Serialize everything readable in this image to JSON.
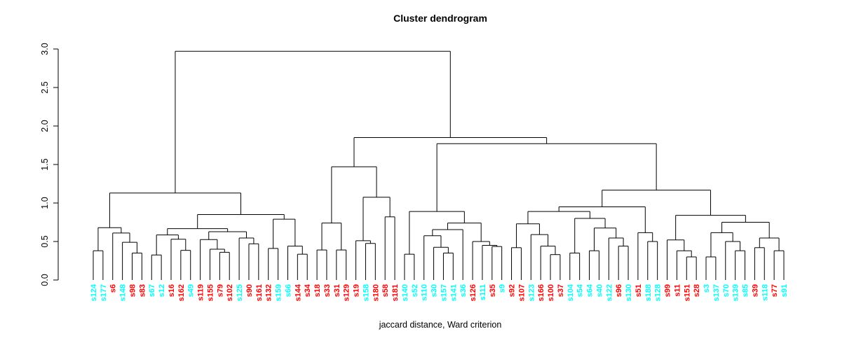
{
  "chart_data": {
    "type": "dendrogram",
    "title": "Cluster dendrogram",
    "xlabel": "jaccard distance, Ward criterion",
    "ylabel": "",
    "ylim": [
      0.0,
      3.0
    ],
    "y_ticks": [
      0.0,
      0.5,
      1.0,
      1.5,
      2.0,
      2.5,
      3.0
    ],
    "grid": false,
    "line_color": "#000000",
    "leaf_colors": {
      "red": "#FF0000",
      "cyan": "#00FFFF"
    },
    "leaves": [
      {
        "name": "s124",
        "color": "cyan"
      },
      {
        "name": "s177",
        "color": "cyan"
      },
      {
        "name": "s6",
        "color": "red"
      },
      {
        "name": "s148",
        "color": "cyan"
      },
      {
        "name": "s98",
        "color": "red"
      },
      {
        "name": "s83",
        "color": "red"
      },
      {
        "name": "s67",
        "color": "cyan"
      },
      {
        "name": "s12",
        "color": "cyan"
      },
      {
        "name": "s16",
        "color": "red"
      },
      {
        "name": "s162",
        "color": "red"
      },
      {
        "name": "s49",
        "color": "cyan"
      },
      {
        "name": "s119",
        "color": "red"
      },
      {
        "name": "s155",
        "color": "red"
      },
      {
        "name": "s79",
        "color": "red"
      },
      {
        "name": "s102",
        "color": "red"
      },
      {
        "name": "s125",
        "color": "cyan"
      },
      {
        "name": "s90",
        "color": "red"
      },
      {
        "name": "s161",
        "color": "red"
      },
      {
        "name": "s132",
        "color": "red"
      },
      {
        "name": "s159",
        "color": "cyan"
      },
      {
        "name": "s66",
        "color": "cyan"
      },
      {
        "name": "s144",
        "color": "red"
      },
      {
        "name": "s34",
        "color": "red"
      },
      {
        "name": "s18",
        "color": "red"
      },
      {
        "name": "s33",
        "color": "red"
      },
      {
        "name": "s31",
        "color": "red"
      },
      {
        "name": "s129",
        "color": "red"
      },
      {
        "name": "s19",
        "color": "red"
      },
      {
        "name": "s158",
        "color": "cyan"
      },
      {
        "name": "s180",
        "color": "red"
      },
      {
        "name": "s58",
        "color": "red"
      },
      {
        "name": "s181",
        "color": "red"
      },
      {
        "name": "s140",
        "color": "cyan"
      },
      {
        "name": "s52",
        "color": "cyan"
      },
      {
        "name": "s110",
        "color": "cyan"
      },
      {
        "name": "s30",
        "color": "cyan"
      },
      {
        "name": "s157",
        "color": "cyan"
      },
      {
        "name": "s141",
        "color": "cyan"
      },
      {
        "name": "s36",
        "color": "cyan"
      },
      {
        "name": "s126",
        "color": "red"
      },
      {
        "name": "s111",
        "color": "cyan"
      },
      {
        "name": "s35",
        "color": "red"
      },
      {
        "name": "s9",
        "color": "cyan"
      },
      {
        "name": "s92",
        "color": "red"
      },
      {
        "name": "s107",
        "color": "red"
      },
      {
        "name": "s123",
        "color": "cyan"
      },
      {
        "name": "s166",
        "color": "red"
      },
      {
        "name": "s100",
        "color": "red"
      },
      {
        "name": "s37",
        "color": "red"
      },
      {
        "name": "s104",
        "color": "cyan"
      },
      {
        "name": "s54",
        "color": "cyan"
      },
      {
        "name": "s64",
        "color": "cyan"
      },
      {
        "name": "s40",
        "color": "cyan"
      },
      {
        "name": "s122",
        "color": "cyan"
      },
      {
        "name": "s96",
        "color": "red"
      },
      {
        "name": "s130",
        "color": "cyan"
      },
      {
        "name": "s51",
        "color": "red"
      },
      {
        "name": "s188",
        "color": "cyan"
      },
      {
        "name": "s128",
        "color": "cyan"
      },
      {
        "name": "s99",
        "color": "red"
      },
      {
        "name": "s11",
        "color": "red"
      },
      {
        "name": "s151",
        "color": "red"
      },
      {
        "name": "s28",
        "color": "red"
      },
      {
        "name": "s3",
        "color": "cyan"
      },
      {
        "name": "s137",
        "color": "cyan"
      },
      {
        "name": "s70",
        "color": "cyan"
      },
      {
        "name": "s139",
        "color": "cyan"
      },
      {
        "name": "s85",
        "color": "cyan"
      },
      {
        "name": "s39",
        "color": "red"
      },
      {
        "name": "s118",
        "color": "cyan"
      },
      {
        "name": "s77",
        "color": "red"
      },
      {
        "name": "s91",
        "color": "cyan"
      }
    ],
    "tree": {
      "h": 2.97,
      "c": [
        {
          "h": 1.13,
          "c": [
            {
              "h": 0.68,
              "c": [
                {
                  "h": 0.38,
                  "c": [
                    "s124",
                    "s177"
                  ]
                },
                {
                  "h": 0.61,
                  "c": [
                    "s6",
                    {
                      "h": 0.49,
                      "c": [
                        "s148",
                        {
                          "h": 0.35,
                          "c": [
                            "s98",
                            "s83"
                          ]
                        }
                      ]
                    }
                  ]
                }
              ]
            },
            {
              "h": 0.85,
              "c": [
                {
                  "h": 0.667,
                  "c": [
                    {
                      "h": 0.585,
                      "c": [
                        {
                          "h": 0.325,
                          "c": [
                            "s67",
                            "s12"
                          ]
                        },
                        {
                          "h": 0.53,
                          "c": [
                            "s16",
                            {
                              "h": 0.385,
                              "c": [
                                "s162",
                                "s49"
                              ]
                            }
                          ]
                        }
                      ]
                    },
                    {
                      "h": 0.627,
                      "c": [
                        {
                          "h": 0.525,
                          "c": [
                            "s119",
                            {
                              "h": 0.4,
                              "c": [
                                "s155",
                                {
                                  "h": 0.36,
                                  "c": [
                                    "s79",
                                    "s102"
                                  ]
                                }
                              ]
                            }
                          ]
                        },
                        {
                          "h": 0.545,
                          "c": [
                            "s125",
                            {
                              "h": 0.47,
                              "c": [
                                "s90",
                                "s161"
                              ]
                            }
                          ]
                        }
                      ]
                    }
                  ]
                },
                {
                  "h": 0.79,
                  "c": [
                    {
                      "h": 0.41,
                      "c": [
                        "s132",
                        "s159"
                      ]
                    },
                    {
                      "h": 0.44,
                      "c": [
                        "s66",
                        {
                          "h": 0.335,
                          "c": [
                            "s144",
                            "s34"
                          ]
                        }
                      ]
                    }
                  ]
                }
              ]
            }
          ]
        },
        {
          "h": 1.85,
          "c": [
            {
              "h": 1.47,
              "c": [
                {
                  "h": 0.74,
                  "c": [
                    {
                      "h": 0.39,
                      "c": [
                        "s18",
                        "s33"
                      ]
                    },
                    {
                      "h": 0.39,
                      "c": [
                        "s31",
                        "s129"
                      ]
                    }
                  ]
                },
                {
                  "h": 1.075,
                  "c": [
                    {
                      "h": 0.51,
                      "c": [
                        "s19",
                        {
                          "h": 0.475,
                          "c": [
                            "s158",
                            "s180"
                          ]
                        }
                      ]
                    },
                    {
                      "h": 0.82,
                      "c": [
                        "s58",
                        "s181"
                      ]
                    }
                  ]
                }
              ]
            },
            {
              "h": 1.77,
              "c": [
                {
                  "h": 0.89,
                  "c": [
                    {
                      "h": 0.335,
                      "c": [
                        "s140",
                        "s52"
                      ]
                    },
                    {
                      "h": 0.74,
                      "c": [
                        {
                          "h": 0.655,
                          "c": [
                            {
                              "h": 0.575,
                              "c": [
                                "s110",
                                {
                                  "h": 0.425,
                                  "c": [
                                    "s30",
                                    {
                                      "h": 0.35,
                                      "c": [
                                        "s157",
                                        "s141"
                                      ]
                                    }
                                  ]
                                }
                              ]
                            },
                            "s36"
                          ]
                        },
                        {
                          "h": 0.5,
                          "c": [
                            "s126",
                            {
                              "h": 0.45,
                              "c": [
                                "s111",
                                {
                                  "h": 0.435,
                                  "c": [
                                    "s35",
                                    "s9"
                                  ]
                                }
                              ]
                            }
                          ]
                        }
                      ]
                    }
                  ]
                },
                {
                  "h": 1.167,
                  "c": [
                    {
                      "h": 0.95,
                      "c": [
                        {
                          "h": 0.89,
                          "c": [
                            {
                              "h": 0.73,
                              "c": [
                                {
                                  "h": 0.42,
                                  "c": [
                                    "s92",
                                    "s107"
                                  ]
                                },
                                {
                                  "h": 0.59,
                                  "c": [
                                    "s123",
                                    {
                                      "h": 0.44,
                                      "c": [
                                        "s166",
                                        {
                                          "h": 0.33,
                                          "c": [
                                            "s100",
                                            "s37"
                                          ]
                                        }
                                      ]
                                    }
                                  ]
                                }
                              ]
                            },
                            {
                              "h": 0.8,
                              "c": [
                                {
                                  "h": 0.35,
                                  "c": [
                                    "s104",
                                    "s54"
                                  ]
                                },
                                {
                                  "h": 0.675,
                                  "c": [
                                    {
                                      "h": 0.38,
                                      "c": [
                                        "s64",
                                        "s40"
                                      ]
                                    },
                                    {
                                      "h": 0.545,
                                      "c": [
                                        "s122",
                                        {
                                          "h": 0.44,
                                          "c": [
                                            "s96",
                                            "s130"
                                          ]
                                        }
                                      ]
                                    }
                                  ]
                                }
                              ]
                            }
                          ]
                        },
                        {
                          "h": 0.615,
                          "c": [
                            "s51",
                            {
                              "h": 0.5,
                              "c": [
                                "s188",
                                "s128"
                              ]
                            }
                          ]
                        }
                      ]
                    },
                    {
                      "h": 0.84,
                      "c": [
                        {
                          "h": 0.52,
                          "c": [
                            "s99",
                            {
                              "h": 0.38,
                              "c": [
                                "s11",
                                {
                                  "h": 0.3,
                                  "c": [
                                    "s151",
                                    "s28"
                                  ]
                                }
                              ]
                            }
                          ]
                        },
                        {
                          "h": 0.75,
                          "c": [
                            {
                              "h": 0.615,
                              "c": [
                                {
                                  "h": 0.3,
                                  "c": [
                                    "s3",
                                    "s137"
                                  ]
                                },
                                {
                                  "h": 0.5,
                                  "c": [
                                    "s70",
                                    {
                                      "h": 0.38,
                                      "c": [
                                        "s139",
                                        "s85"
                                      ]
                                    }
                                  ]
                                }
                              ]
                            },
                            {
                              "h": 0.545,
                              "c": [
                                {
                                  "h": 0.42,
                                  "c": [
                                    "s39",
                                    "s118"
                                  ]
                                },
                                {
                                  "h": 0.38,
                                  "c": [
                                    "s77",
                                    "s91"
                                  ]
                                }
                              ]
                            }
                          ]
                        }
                      ]
                    }
                  ]
                }
              ]
            }
          ]
        }
      ]
    }
  }
}
